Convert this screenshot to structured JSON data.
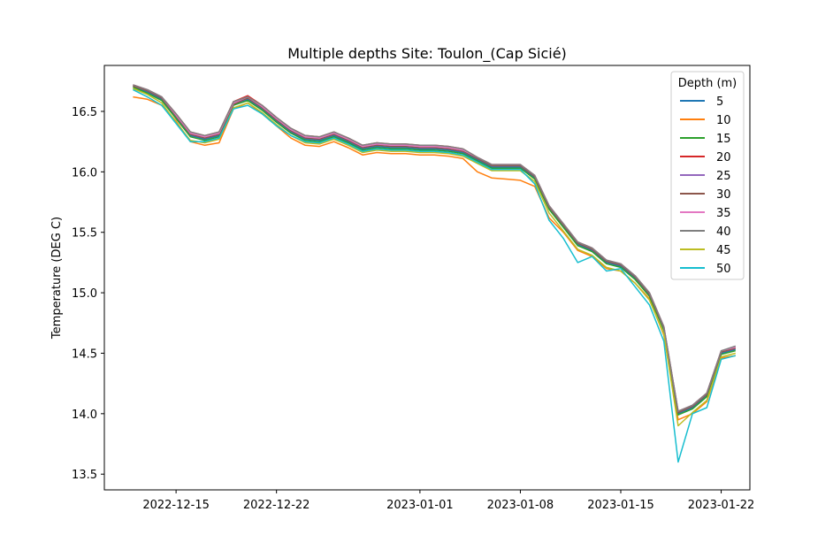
{
  "chart_data": {
    "type": "line",
    "title": "Multiple depths Site: Toulon_(Cap Sicié)",
    "xlabel": "",
    "ylabel": "Temperature (DEG C)",
    "x_range": [
      "2022-12-10",
      "2023-01-24"
    ],
    "ylim": [
      13.37,
      16.88
    ],
    "x_ticks": [
      "2022-12-15",
      "2022-12-22",
      "2023-01-01",
      "2023-01-08",
      "2023-01-15",
      "2023-01-22"
    ],
    "y_ticks": [
      13.5,
      14.0,
      14.5,
      15.0,
      15.5,
      16.0,
      16.5
    ],
    "y_tick_labels": [
      "13.5",
      "14.0",
      "14.5",
      "15.0",
      "15.5",
      "16.0",
      "16.5"
    ],
    "grid": false,
    "legend": {
      "title": "Depth (m)",
      "placement": "top-right"
    },
    "x": [
      "2022-12-12",
      "2022-12-13",
      "2022-12-14",
      "2022-12-15",
      "2022-12-16",
      "2022-12-17",
      "2022-12-18",
      "2022-12-19",
      "2022-12-20",
      "2022-12-21",
      "2022-12-22",
      "2022-12-23",
      "2022-12-24",
      "2022-12-25",
      "2022-12-26",
      "2022-12-27",
      "2022-12-28",
      "2022-12-29",
      "2022-12-30",
      "2022-12-31",
      "2023-01-01",
      "2023-01-02",
      "2023-01-03",
      "2023-01-04",
      "2023-01-05",
      "2023-01-06",
      "2023-01-07",
      "2023-01-08",
      "2023-01-09",
      "2023-01-10",
      "2023-01-11",
      "2023-01-12",
      "2023-01-13",
      "2023-01-14",
      "2023-01-15",
      "2023-01-16",
      "2023-01-17",
      "2023-01-18",
      "2023-01-19",
      "2023-01-20",
      "2023-01-21",
      "2023-01-22",
      "2023-01-23"
    ],
    "series": [
      {
        "name": "5",
        "color": "#1f77b4",
        "values": [
          16.7,
          16.66,
          16.6,
          16.45,
          16.3,
          16.27,
          16.3,
          16.55,
          16.6,
          16.52,
          16.42,
          16.33,
          16.27,
          16.26,
          16.3,
          16.25,
          16.19,
          16.21,
          16.2,
          16.2,
          16.19,
          16.19,
          16.18,
          16.16,
          16.1,
          16.04,
          16.04,
          16.04,
          15.95,
          15.7,
          15.55,
          15.4,
          15.35,
          15.25,
          15.22,
          15.12,
          14.98,
          14.7,
          14.0,
          14.05,
          14.15,
          14.5,
          14.53
        ]
      },
      {
        "name": "10",
        "color": "#ff7f0e",
        "values": [
          16.62,
          16.6,
          16.55,
          16.42,
          16.25,
          16.22,
          16.24,
          16.52,
          16.57,
          16.48,
          16.38,
          16.28,
          16.22,
          16.21,
          16.25,
          16.2,
          16.14,
          16.16,
          16.15,
          16.15,
          16.14,
          16.14,
          16.13,
          16.11,
          16.0,
          15.95,
          15.94,
          15.93,
          15.88,
          15.62,
          15.5,
          15.35,
          15.3,
          15.2,
          15.18,
          15.08,
          14.95,
          14.65,
          13.95,
          14.0,
          14.1,
          14.46,
          14.48
        ]
      },
      {
        "name": "15",
        "color": "#2ca02c",
        "values": [
          16.7,
          16.65,
          16.59,
          16.44,
          16.29,
          16.26,
          16.29,
          16.55,
          16.59,
          16.51,
          16.41,
          16.32,
          16.26,
          16.25,
          16.29,
          16.24,
          16.18,
          16.2,
          16.19,
          16.19,
          16.18,
          16.18,
          16.17,
          16.15,
          16.09,
          16.03,
          16.03,
          16.03,
          15.94,
          15.69,
          15.54,
          15.39,
          15.34,
          15.24,
          15.21,
          15.11,
          14.97,
          14.69,
          13.99,
          14.04,
          14.14,
          14.49,
          14.52
        ]
      },
      {
        "name": "20",
        "color": "#d62728",
        "values": [
          16.72,
          16.68,
          16.62,
          16.48,
          16.33,
          16.3,
          16.33,
          16.58,
          16.63,
          16.55,
          16.45,
          16.36,
          16.3,
          16.29,
          16.33,
          16.28,
          16.22,
          16.24,
          16.23,
          16.23,
          16.22,
          16.22,
          16.21,
          16.19,
          16.12,
          16.06,
          16.06,
          16.06,
          15.97,
          15.72,
          15.57,
          15.42,
          15.37,
          15.27,
          15.24,
          15.14,
          15.0,
          14.72,
          14.02,
          14.07,
          14.17,
          14.52,
          14.55
        ]
      },
      {
        "name": "25",
        "color": "#9467bd",
        "values": [
          16.71,
          16.67,
          16.61,
          16.46,
          16.31,
          16.28,
          16.31,
          16.56,
          16.61,
          16.53,
          16.43,
          16.34,
          16.28,
          16.27,
          16.31,
          16.26,
          16.2,
          16.22,
          16.21,
          16.21,
          16.2,
          16.2,
          16.19,
          16.17,
          16.11,
          16.05,
          16.05,
          16.05,
          15.96,
          15.71,
          15.56,
          15.41,
          15.36,
          15.26,
          15.23,
          15.13,
          14.99,
          14.71,
          14.01,
          14.06,
          14.16,
          14.51,
          14.54
        ]
      },
      {
        "name": "30",
        "color": "#8c564b",
        "values": [
          16.71,
          16.67,
          16.61,
          16.46,
          16.31,
          16.28,
          16.31,
          16.56,
          16.61,
          16.53,
          16.43,
          16.34,
          16.28,
          16.27,
          16.31,
          16.26,
          16.2,
          16.22,
          16.21,
          16.21,
          16.2,
          16.2,
          16.19,
          16.17,
          16.11,
          16.05,
          16.05,
          16.05,
          15.96,
          15.71,
          15.56,
          15.41,
          15.36,
          15.26,
          15.23,
          15.13,
          14.99,
          14.71,
          14.01,
          14.06,
          14.16,
          14.51,
          14.54
        ]
      },
      {
        "name": "35",
        "color": "#e377c2",
        "values": [
          16.72,
          16.68,
          16.62,
          16.47,
          16.32,
          16.29,
          16.32,
          16.57,
          16.62,
          16.54,
          16.44,
          16.35,
          16.29,
          16.28,
          16.32,
          16.27,
          16.21,
          16.23,
          16.22,
          16.22,
          16.21,
          16.21,
          16.2,
          16.18,
          16.12,
          16.06,
          16.06,
          16.06,
          15.97,
          15.72,
          15.57,
          15.42,
          15.37,
          15.27,
          15.24,
          15.14,
          15.0,
          14.72,
          14.02,
          14.07,
          14.17,
          14.52,
          14.55
        ]
      },
      {
        "name": "40",
        "color": "#7f7f7f",
        "values": [
          16.72,
          16.68,
          16.62,
          16.48,
          16.33,
          16.3,
          16.33,
          16.58,
          16.62,
          16.55,
          16.45,
          16.36,
          16.3,
          16.29,
          16.33,
          16.28,
          16.22,
          16.24,
          16.23,
          16.23,
          16.22,
          16.22,
          16.21,
          16.19,
          16.12,
          16.06,
          16.06,
          16.06,
          15.97,
          15.72,
          15.57,
          15.42,
          15.37,
          15.27,
          15.24,
          15.14,
          15.0,
          14.72,
          14.02,
          14.07,
          14.17,
          14.52,
          14.56
        ]
      },
      {
        "name": "45",
        "color": "#bcbd22",
        "values": [
          16.69,
          16.64,
          16.57,
          16.41,
          16.26,
          16.24,
          16.27,
          16.53,
          16.57,
          16.49,
          16.39,
          16.3,
          16.24,
          16.23,
          16.27,
          16.22,
          16.16,
          16.18,
          16.17,
          16.17,
          16.16,
          16.16,
          16.15,
          16.13,
          16.07,
          16.01,
          16.01,
          16.01,
          15.92,
          15.66,
          15.51,
          15.36,
          15.31,
          15.21,
          15.18,
          15.08,
          14.94,
          14.66,
          13.9,
          14.01,
          14.11,
          14.47,
          14.5
        ]
      },
      {
        "name": "50",
        "color": "#17becf",
        "values": [
          16.68,
          16.62,
          16.55,
          16.4,
          16.25,
          16.25,
          16.28,
          16.52,
          16.55,
          16.48,
          16.38,
          16.3,
          16.25,
          16.24,
          16.28,
          16.23,
          16.17,
          16.19,
          16.18,
          16.18,
          16.17,
          16.17,
          16.16,
          16.14,
          16.08,
          16.02,
          16.02,
          16.02,
          15.9,
          15.6,
          15.45,
          15.25,
          15.3,
          15.18,
          15.2,
          15.05,
          14.9,
          14.6,
          13.6,
          14.0,
          14.05,
          14.45,
          14.48
        ]
      }
    ]
  }
}
